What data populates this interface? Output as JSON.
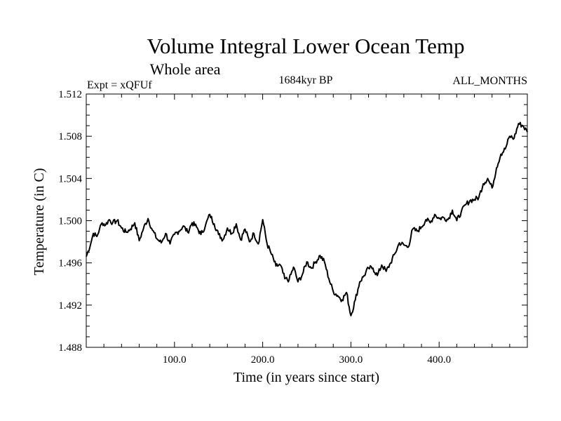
{
  "chart_data": {
    "type": "line",
    "title": "Volume Integral Lower Ocean Temp",
    "subtitle": "Whole area",
    "annotations": {
      "left": "Expt = xQFUf",
      "center": "1684kyr BP",
      "right": "ALL_MONTHS"
    },
    "xlabel": "Time (in years since start)",
    "ylabel": "Temperature (in C)",
    "xlim": [
      0,
      500
    ],
    "ylim": [
      1.488,
      1.512
    ],
    "x_ticks": [
      100,
      200,
      300,
      400
    ],
    "x_tick_labels": [
      "100.0",
      "200.0",
      "300.0",
      "400.0"
    ],
    "y_ticks": [
      1.488,
      1.492,
      1.496,
      1.5,
      1.504,
      1.508,
      1.512
    ],
    "y_tick_labels": [
      "1.488",
      "1.492",
      "1.496",
      "1.500",
      "1.504",
      "1.508",
      "1.512"
    ],
    "grid": false,
    "series": [
      {
        "name": "Volume Integral Lower Ocean Temp",
        "x": [
          0,
          5,
          8,
          12,
          15,
          18,
          22,
          26,
          30,
          35,
          40,
          45,
          50,
          55,
          60,
          65,
          70,
          75,
          80,
          85,
          90,
          95,
          100,
          105,
          110,
          115,
          120,
          125,
          130,
          135,
          140,
          145,
          150,
          155,
          160,
          165,
          170,
          175,
          180,
          185,
          190,
          195,
          200,
          205,
          210,
          215,
          220,
          225,
          230,
          235,
          240,
          245,
          250,
          255,
          260,
          265,
          270,
          275,
          280,
          285,
          290,
          295,
          300,
          305,
          310,
          315,
          320,
          325,
          330,
          335,
          340,
          345,
          350,
          355,
          360,
          365,
          370,
          375,
          380,
          385,
          390,
          395,
          400,
          405,
          410,
          415,
          420,
          425,
          430,
          435,
          440,
          445,
          450,
          455,
          460,
          465,
          470,
          475,
          480,
          485,
          490,
          495,
          500
        ],
        "y": [
          1.4966,
          1.4978,
          1.4988,
          1.4985,
          1.4992,
          1.4998,
          1.4996,
          1.5001,
          1.4998,
          1.5,
          1.4993,
          1.4989,
          1.4992,
          1.4998,
          1.4981,
          1.4993,
          1.5002,
          1.4991,
          1.4983,
          1.4979,
          1.4988,
          1.4978,
          1.4987,
          1.499,
          1.4995,
          1.4989,
          1.4998,
          1.4994,
          1.4987,
          1.4995,
          1.5006,
          1.4997,
          1.4987,
          1.4982,
          1.4993,
          1.4988,
          1.4997,
          1.4982,
          1.4992,
          1.498,
          1.4988,
          1.4978,
          1.5001,
          1.4978,
          1.4968,
          1.4957,
          1.4958,
          1.4945,
          1.4944,
          1.4956,
          1.4942,
          1.4949,
          1.4961,
          1.4955,
          1.4961,
          1.4967,
          1.4961,
          1.4945,
          1.4933,
          1.4929,
          1.4925,
          1.4932,
          1.491,
          1.4925,
          1.4942,
          1.4948,
          1.4955,
          1.4955,
          1.4948,
          1.4958,
          1.4952,
          1.496,
          1.4969,
          1.4979,
          1.4977,
          1.4975,
          1.4992,
          1.499,
          1.4994,
          1.5001,
          1.4998,
          1.5006,
          1.5002,
          1.5003,
          1.5001,
          1.501,
          1.5,
          1.5008,
          1.5015,
          1.5019,
          1.502,
          1.5022,
          1.5035,
          1.504,
          1.5031,
          1.505,
          1.5063,
          1.5068,
          1.508,
          1.5078,
          1.5092,
          1.509,
          1.5084
        ]
      }
    ]
  }
}
